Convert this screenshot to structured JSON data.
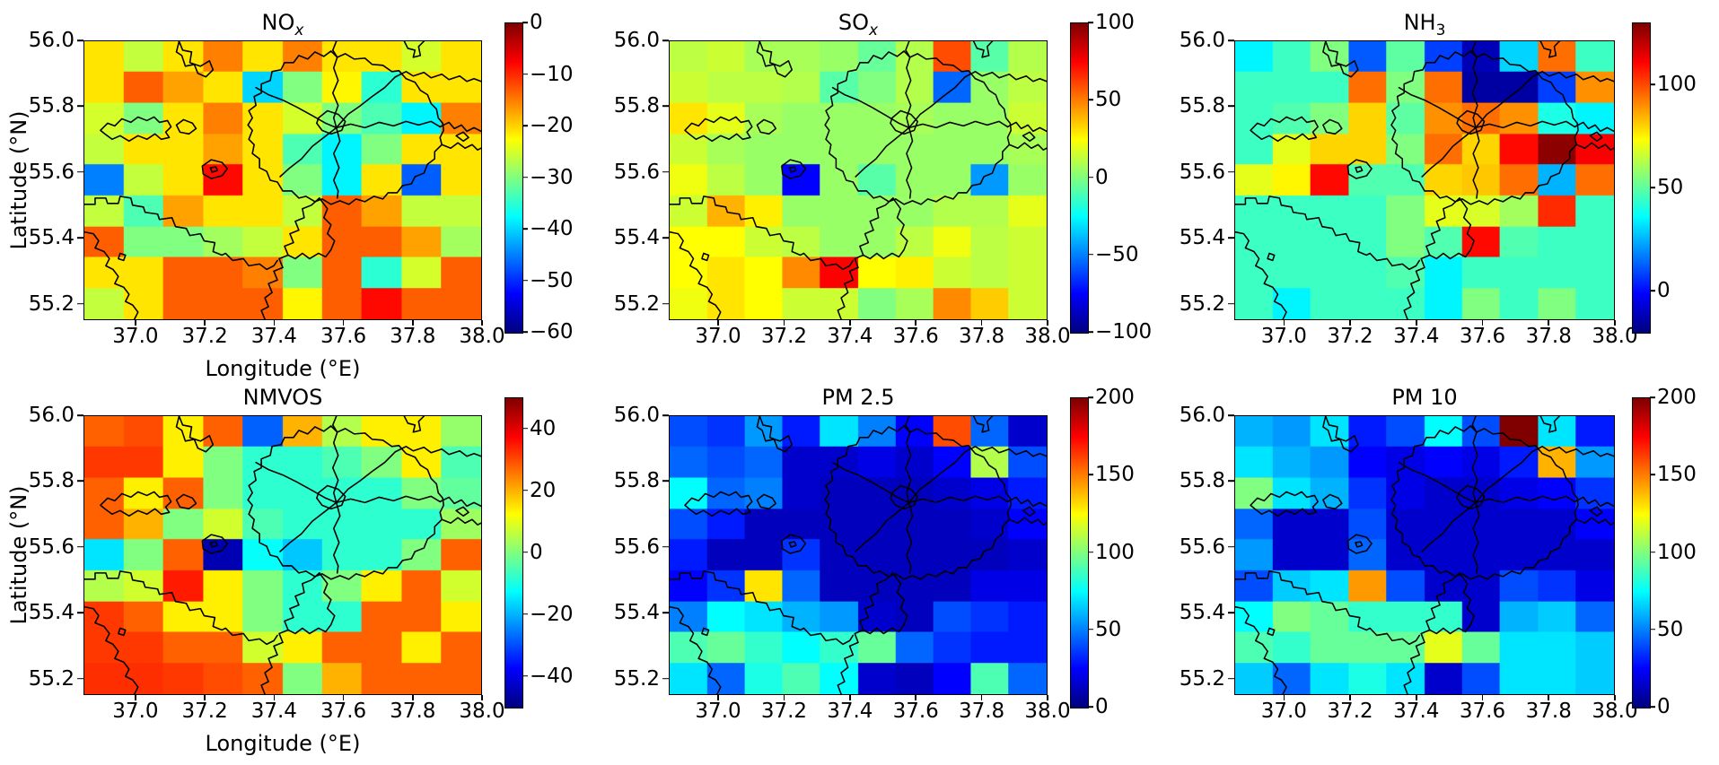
{
  "figure": {
    "xlabel": "Longitude (°E)",
    "ylabel": "Latitude  (°N)",
    "x_tick_labels": [
      "37.0",
      "37.2",
      "37.4",
      "37.6",
      "37.8",
      "38.0"
    ],
    "y_tick_labels": [
      "56.0",
      "55.8",
      "55.6",
      "55.4",
      "55.2"
    ]
  },
  "chart_data": [
    {
      "type": "heatmap",
      "title": "NOx",
      "title_main": "NO",
      "title_sub": "x",
      "colormap": "jet",
      "x_range": [
        36.85,
        38.0
      ],
      "y_range": [
        55.15,
        56.0
      ],
      "x_ticks": [
        37.0,
        37.2,
        37.4,
        37.6,
        37.8,
        38.0
      ],
      "y_ticks": [
        56.0,
        55.8,
        55.6,
        55.4,
        55.2
      ],
      "vmin": -60,
      "vmax": 0,
      "colorbar_ticks": [
        0,
        -10,
        -20,
        -30,
        -40,
        -50,
        -60
      ],
      "grid_note": "9 rows (top=56.0N to bottom=55.15N) x 10 cols (left=36.85E to right=38.0E), values estimated from colors",
      "grid": [
        [
          -21,
          -26,
          -21,
          -15,
          -21,
          -15,
          -21,
          -21,
          -25,
          -21
        ],
        [
          -21,
          -13,
          -17,
          -21,
          -40,
          -30,
          -22,
          -35,
          -21,
          -21
        ],
        [
          -25,
          -30,
          -21,
          -15,
          -21,
          -25,
          -30,
          -33,
          -38,
          -15
        ],
        [
          -26,
          -21,
          -21,
          -17,
          -21,
          -33,
          -38,
          -30,
          -21,
          -21
        ],
        [
          -45,
          -26,
          -21,
          -8,
          -21,
          -30,
          -38,
          -21,
          -47,
          -21
        ],
        [
          -26,
          -33,
          -17,
          -21,
          -21,
          -26,
          -13,
          -17,
          -26,
          -26
        ],
        [
          -13,
          -30,
          -30,
          -28,
          -26,
          -21,
          -13,
          -13,
          -17,
          -28
        ],
        [
          -21,
          -21,
          -13,
          -13,
          -15,
          -30,
          -13,
          -35,
          -25,
          -13
        ],
        [
          -26,
          -21,
          -13,
          -13,
          -13,
          -22,
          -13,
          -8,
          -13,
          -13
        ]
      ]
    },
    {
      "type": "heatmap",
      "title": "SOx",
      "title_main": "SO",
      "title_sub": "x",
      "colormap": "jet",
      "x_range": [
        36.85,
        38.0
      ],
      "y_range": [
        55.15,
        56.0
      ],
      "x_ticks": [
        37.0,
        37.2,
        37.4,
        37.6,
        37.8,
        38.0
      ],
      "y_ticks": [
        56.0,
        55.8,
        55.6,
        55.4,
        55.2
      ],
      "vmin": -100,
      "vmax": 100,
      "colorbar_ticks": [
        100,
        50,
        0,
        -50,
        -100
      ],
      "grid_note": "9 rows (top=56.0N to bottom=55.15N) x 10 cols (left=36.85E to right=38.0E), values estimated from colors",
      "grid": [
        [
          12,
          15,
          8,
          8,
          5,
          -5,
          10,
          60,
          -8,
          10
        ],
        [
          15,
          12,
          12,
          10,
          -8,
          0,
          10,
          -55,
          5,
          12
        ],
        [
          30,
          20,
          8,
          5,
          5,
          5,
          8,
          5,
          5,
          15
        ],
        [
          15,
          8,
          5,
          5,
          5,
          5,
          5,
          5,
          5,
          8
        ],
        [
          22,
          12,
          5,
          -75,
          5,
          -8,
          5,
          5,
          -45,
          5
        ],
        [
          15,
          40,
          28,
          5,
          5,
          5,
          5,
          10,
          10,
          20
        ],
        [
          25,
          25,
          15,
          12,
          5,
          5,
          12,
          22,
          12,
          15
        ],
        [
          25,
          30,
          25,
          48,
          75,
          25,
          28,
          15,
          12,
          15
        ],
        [
          22,
          30,
          25,
          15,
          15,
          0,
          8,
          48,
          35,
          15
        ]
      ]
    },
    {
      "type": "heatmap",
      "title": "NH3",
      "title_main": "NH",
      "title_sub": "3",
      "colormap": "jet",
      "x_range": [
        36.85,
        38.0
      ],
      "y_range": [
        55.15,
        56.0
      ],
      "x_ticks": [
        37.0,
        37.2,
        37.4,
        37.6,
        37.8,
        38.0
      ],
      "y_ticks": [
        56.0,
        55.8,
        55.6,
        55.4,
        55.2
      ],
      "vmin": -20,
      "vmax": 130,
      "colorbar_ticks": [
        100,
        50,
        0
      ],
      "grid_note": "9 rows (top=56.0N to bottom=55.15N) x 10 cols (left=36.85E to right=38.0E), values estimated from colors",
      "grid": [
        [
          35,
          45,
          55,
          12,
          50,
          8,
          -12,
          30,
          95,
          45
        ],
        [
          45,
          45,
          45,
          95,
          55,
          95,
          -15,
          -15,
          8,
          90
        ],
        [
          45,
          48,
          55,
          80,
          50,
          90,
          95,
          90,
          40,
          35
        ],
        [
          45,
          70,
          80,
          80,
          55,
          95,
          80,
          110,
          128,
          112
        ],
        [
          70,
          75,
          110,
          48,
          48,
          80,
          82,
          95,
          25,
          95
        ],
        [
          45,
          45,
          45,
          45,
          55,
          70,
          68,
          60,
          105,
          45
        ],
        [
          45,
          45,
          45,
          45,
          55,
          48,
          110,
          48,
          45,
          45
        ],
        [
          45,
          45,
          45,
          45,
          48,
          35,
          45,
          45,
          45,
          45
        ],
        [
          45,
          35,
          45,
          45,
          45,
          35,
          55,
          45,
          55,
          45
        ]
      ]
    },
    {
      "type": "heatmap",
      "title": "NMVOS",
      "title_main": "NMVOS",
      "title_sub": "",
      "colormap": "jet",
      "x_range": [
        36.85,
        38.0
      ],
      "y_range": [
        55.15,
        56.0
      ],
      "x_ticks": [
        37.0,
        37.2,
        37.4,
        37.6,
        37.8,
        38.0
      ],
      "y_ticks": [
        56.0,
        55.8,
        55.6,
        55.4,
        55.2
      ],
      "vmin": -50,
      "vmax": 50,
      "colorbar_ticks": [
        40,
        20,
        0,
        -20,
        -40
      ],
      "grid_note": "9 rows (top=56.0N to bottom=55.15N) x 10 cols (left=36.85E to right=38.0E), values estimated from colors",
      "grid": [
        [
          28,
          30,
          14,
          28,
          -28,
          20,
          5,
          14,
          14,
          2
        ],
        [
          32,
          32,
          14,
          0,
          -8,
          -8,
          -5,
          0,
          14,
          -5
        ],
        [
          28,
          14,
          28,
          0,
          -8,
          -8,
          -8,
          -8,
          0,
          -3
        ],
        [
          28,
          20,
          0,
          8,
          -5,
          -8,
          -8,
          -8,
          -8,
          3
        ],
        [
          -15,
          0,
          28,
          -45,
          -12,
          -18,
          -8,
          -8,
          0,
          28
        ],
        [
          5,
          8,
          35,
          14,
          0,
          -8,
          0,
          14,
          28,
          8
        ],
        [
          32,
          28,
          14,
          14,
          0,
          -8,
          -8,
          28,
          28,
          14
        ],
        [
          32,
          32,
          28,
          28,
          8,
          14,
          28,
          28,
          14,
          28
        ],
        [
          33,
          33,
          32,
          30,
          28,
          0,
          20,
          28,
          28,
          28
        ]
      ]
    },
    {
      "type": "heatmap",
      "title": "PM 2.5",
      "title_main": "PM 2.5",
      "title_sub": "",
      "colormap": "jet",
      "x_range": [
        36.85,
        38.0
      ],
      "y_range": [
        55.15,
        56.0
      ],
      "x_ticks": [
        37.0,
        37.2,
        37.4,
        37.6,
        37.8,
        38.0
      ],
      "y_ticks": [
        56.0,
        55.8,
        55.6,
        55.4,
        55.2
      ],
      "vmin": 0,
      "vmax": 200,
      "colorbar_ticks": [
        200,
        150,
        100,
        50,
        0
      ],
      "grid_note": "9 rows (top=56.0N to bottom=55.15N) x 10 cols (left=36.85E to right=38.0E), values estimated from colors",
      "grid": [
        [
          40,
          35,
          55,
          30,
          70,
          50,
          25,
          160,
          45,
          15
        ],
        [
          45,
          40,
          45,
          15,
          15,
          20,
          15,
          25,
          110,
          40
        ],
        [
          75,
          45,
          50,
          15,
          12,
          12,
          12,
          15,
          20,
          30
        ],
        [
          40,
          30,
          12,
          12,
          12,
          12,
          12,
          12,
          15,
          25
        ],
        [
          30,
          12,
          12,
          35,
          12,
          12,
          12,
          12,
          12,
          15
        ],
        [
          25,
          35,
          130,
          45,
          12,
          12,
          12,
          12,
          20,
          20
        ],
        [
          50,
          75,
          70,
          60,
          55,
          15,
          12,
          40,
          35,
          30
        ],
        [
          90,
          95,
          85,
          75,
          85,
          95,
          45,
          35,
          30,
          30
        ],
        [
          70,
          45,
          80,
          90,
          75,
          15,
          12,
          25,
          90,
          45
        ]
      ]
    },
    {
      "type": "heatmap",
      "title": "PM 10",
      "title_main": "PM 10",
      "title_sub": "",
      "colormap": "jet",
      "x_range": [
        36.85,
        38.0
      ],
      "y_range": [
        55.15,
        56.0
      ],
      "x_ticks": [
        37.0,
        37.2,
        37.4,
        37.6,
        37.8,
        38.0
      ],
      "y_ticks": [
        56.0,
        55.8,
        55.6,
        55.4,
        55.2
      ],
      "vmin": 0,
      "vmax": 200,
      "colorbar_ticks": [
        200,
        150,
        100,
        50,
        0
      ],
      "grid_note": "9 rows (top=56.0N to bottom=55.15N) x 10 cols (left=36.85E to right=38.0E), values estimated from colors",
      "grid": [
        [
          60,
          55,
          70,
          30,
          40,
          75,
          40,
          200,
          70,
          30
        ],
        [
          70,
          60,
          55,
          25,
          20,
          25,
          20,
          30,
          140,
          55
        ],
        [
          100,
          70,
          60,
          35,
          20,
          15,
          15,
          20,
          25,
          35
        ],
        [
          45,
          15,
          15,
          40,
          15,
          15,
          15,
          15,
          15,
          25
        ],
        [
          55,
          15,
          15,
          45,
          15,
          15,
          15,
          15,
          15,
          15
        ],
        [
          40,
          65,
          70,
          145,
          40,
          15,
          15,
          40,
          35,
          20
        ],
        [
          75,
          100,
          95,
          85,
          85,
          85,
          15,
          60,
          65,
          45
        ],
        [
          90,
          85,
          95,
          95,
          95,
          120,
          95,
          70,
          70,
          65
        ],
        [
          65,
          45,
          70,
          80,
          70,
          15,
          40,
          70,
          70,
          65
        ]
      ]
    }
  ]
}
